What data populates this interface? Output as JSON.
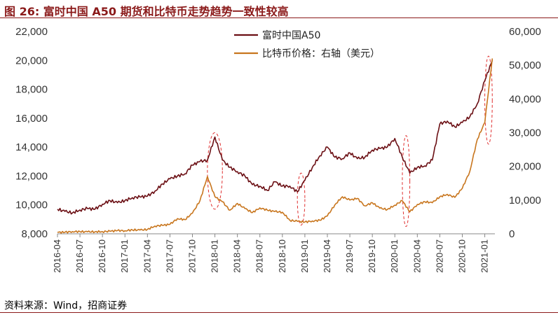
{
  "figure": {
    "title": "图 26:  富时中国 A50 期货和比特币走势趋势一致性较高",
    "source": "资料来源：Wind，招商证券"
  },
  "colors": {
    "a50": "#6B0F14",
    "btc": "#C8761E",
    "highlight": "#E03030",
    "rule": "#8B1A1A"
  },
  "chart_data": {
    "type": "line",
    "legend_position": "top-center",
    "grid": false,
    "series": [
      {
        "name": "富时中国A50",
        "axis": "left",
        "x": [
          "2016-04",
          "2016-05",
          "2016-06",
          "2016-07",
          "2016-08",
          "2016-09",
          "2016-10",
          "2016-11",
          "2016-12",
          "2017-01",
          "2017-02",
          "2017-03",
          "2017-04",
          "2017-05",
          "2017-06",
          "2017-07",
          "2017-08",
          "2017-09",
          "2017-10",
          "2017-11",
          "2017-12",
          "2018-01",
          "2018-02",
          "2018-03",
          "2018-04",
          "2018-05",
          "2018-06",
          "2018-07",
          "2018-08",
          "2018-09",
          "2018-10",
          "2018-11",
          "2018-12",
          "2019-01",
          "2019-02",
          "2019-03",
          "2019-04",
          "2019-05",
          "2019-06",
          "2019-07",
          "2019-08",
          "2019-09",
          "2019-10",
          "2019-11",
          "2019-12",
          "2020-01",
          "2020-02",
          "2020-03",
          "2020-04",
          "2020-05",
          "2020-06",
          "2020-07",
          "2020-08",
          "2020-09",
          "2020-10",
          "2020-11",
          "2020-12",
          "2021-01",
          "2021-02"
        ],
        "values": [
          9700,
          9550,
          9450,
          9650,
          9750,
          9700,
          10050,
          10300,
          10150,
          10300,
          10500,
          10550,
          10600,
          10950,
          11450,
          11800,
          12000,
          12150,
          12750,
          13000,
          13100,
          14700,
          13100,
          12600,
          12300,
          12000,
          11400,
          11300,
          11000,
          11600,
          11300,
          11300,
          10900,
          11700,
          12600,
          13400,
          14000,
          13300,
          13200,
          13600,
          13200,
          13300,
          13800,
          13900,
          14000,
          14600,
          13300,
          12200,
          12600,
          12700,
          13100,
          15600,
          15800,
          15400,
          15700,
          16100,
          17000,
          18600,
          20000
        ]
      },
      {
        "name": "比特币价格：右轴（美元）",
        "axis": "right",
        "x": [
          "2016-04",
          "2016-05",
          "2016-06",
          "2016-07",
          "2016-08",
          "2016-09",
          "2016-10",
          "2016-11",
          "2016-12",
          "2017-01",
          "2017-02",
          "2017-03",
          "2017-04",
          "2017-05",
          "2017-06",
          "2017-07",
          "2017-08",
          "2017-09",
          "2017-10",
          "2017-11",
          "2017-12",
          "2018-01",
          "2018-02",
          "2018-03",
          "2018-04",
          "2018-05",
          "2018-06",
          "2018-07",
          "2018-08",
          "2018-09",
          "2018-10",
          "2018-11",
          "2018-12",
          "2019-01",
          "2019-02",
          "2019-03",
          "2019-04",
          "2019-05",
          "2019-06",
          "2019-07",
          "2019-08",
          "2019-09",
          "2019-10",
          "2019-11",
          "2019-12",
          "2020-01",
          "2020-02",
          "2020-03",
          "2020-04",
          "2020-05",
          "2020-06",
          "2020-07",
          "2020-08",
          "2020-09",
          "2020-10",
          "2020-11",
          "2020-12",
          "2021-01",
          "2021-02"
        ],
        "values": [
          430,
          450,
          670,
          650,
          580,
          610,
          640,
          740,
          960,
          920,
          1150,
          1100,
          1300,
          2300,
          2500,
          2800,
          4500,
          4200,
          6100,
          9800,
          17000,
          11000,
          9500,
          7000,
          9000,
          7500,
          6300,
          7700,
          7000,
          6600,
          6400,
          4000,
          3700,
          3500,
          3800,
          4000,
          5300,
          8600,
          11000,
          10000,
          10500,
          8300,
          9200,
          7600,
          7200,
          8500,
          9800,
          6500,
          8700,
          9500,
          9200,
          11000,
          11700,
          10800,
          13500,
          18500,
          28000,
          33000,
          52000
        ]
      }
    ],
    "xlabel": "",
    "ylabel_left": "",
    "ylabel_right": "",
    "ylim_left": [
      8000,
      22000
    ],
    "ylim_right": [
      0,
      60000
    ],
    "yticks_left": [
      "8,000",
      "10,000",
      "12,000",
      "14,000",
      "16,000",
      "18,000",
      "20,000",
      "22,000"
    ],
    "yticks_right": [
      "0",
      "10,000",
      "20,000",
      "30,000",
      "40,000",
      "50,000",
      "60,000"
    ],
    "xticks": [
      "2016-04",
      "2016-07",
      "2016-10",
      "2017-01",
      "2017-04",
      "2017-07",
      "2017-10",
      "2018-01",
      "2018-04",
      "2018-07",
      "2018-10",
      "2019-01",
      "2019-04",
      "2019-07",
      "2019-10",
      "2020-01",
      "2020-04",
      "2020-07",
      "2020-10",
      "2021-01"
    ]
  }
}
